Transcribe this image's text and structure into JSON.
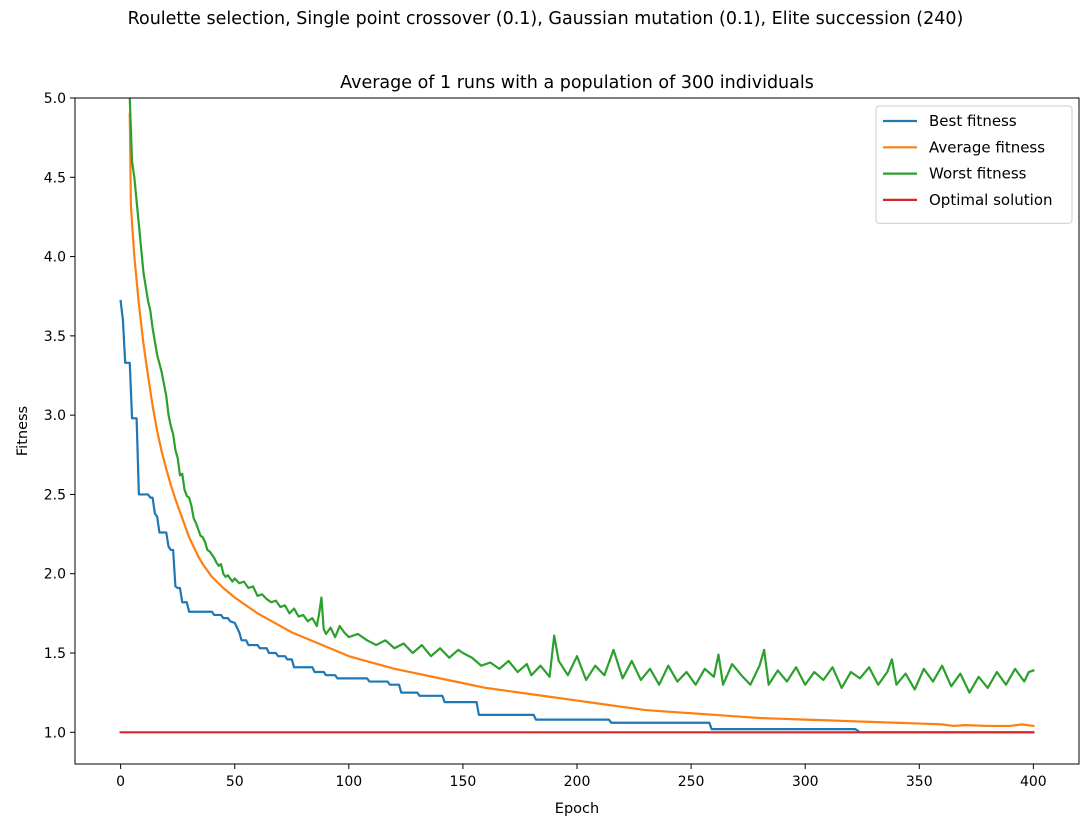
{
  "figure": {
    "suptitle": "Roulette selection, Single point crossover (0.1), Gaussian mutation (0.1), Elite succession (240)"
  },
  "chart_data": {
    "type": "line",
    "title": "Average of 1 runs with a population of 300 individuals",
    "xlabel": "Epoch",
    "ylabel": "Fitness",
    "xlim": [
      -20,
      420
    ],
    "ylim": [
      0.8,
      5.0
    ],
    "xticks": [
      0,
      50,
      100,
      150,
      200,
      250,
      300,
      350,
      400
    ],
    "xtick_labels": [
      "0",
      "50",
      "100",
      "150",
      "200",
      "250",
      "300",
      "350",
      "400"
    ],
    "yticks": [
      1.0,
      1.5,
      2.0,
      2.5,
      3.0,
      3.5,
      4.0,
      4.5,
      5.0
    ],
    "ytick_labels": [
      "1.0",
      "1.5",
      "2.0",
      "2.5",
      "3.0",
      "3.5",
      "4.0",
      "4.5",
      "5.0"
    ],
    "grid": false,
    "legend_position": "top-right",
    "series": [
      {
        "name": "Best fitness",
        "color": "#1f77b4",
        "points": [
          [
            0,
            3.72
          ],
          [
            1,
            3.6
          ],
          [
            2,
            3.33
          ],
          [
            4,
            3.33
          ],
          [
            5,
            2.98
          ],
          [
            7,
            2.98
          ],
          [
            8,
            2.5
          ],
          [
            12,
            2.5
          ],
          [
            13,
            2.48
          ],
          [
            14,
            2.48
          ],
          [
            15,
            2.38
          ],
          [
            16,
            2.36
          ],
          [
            17,
            2.26
          ],
          [
            20,
            2.26
          ],
          [
            21,
            2.17
          ],
          [
            22,
            2.15
          ],
          [
            23,
            2.15
          ],
          [
            24,
            1.92
          ],
          [
            25,
            1.91
          ],
          [
            26,
            1.91
          ],
          [
            27,
            1.82
          ],
          [
            29,
            1.82
          ],
          [
            30,
            1.76
          ],
          [
            40,
            1.76
          ],
          [
            41,
            1.74
          ],
          [
            44,
            1.74
          ],
          [
            45,
            1.72
          ],
          [
            47,
            1.72
          ],
          [
            48,
            1.7
          ],
          [
            50,
            1.69
          ],
          [
            51,
            1.66
          ],
          [
            52,
            1.63
          ],
          [
            53,
            1.58
          ],
          [
            55,
            1.58
          ],
          [
            56,
            1.55
          ],
          [
            60,
            1.55
          ],
          [
            61,
            1.53
          ],
          [
            64,
            1.53
          ],
          [
            65,
            1.5
          ],
          [
            68,
            1.5
          ],
          [
            69,
            1.48
          ],
          [
            72,
            1.48
          ],
          [
            73,
            1.46
          ],
          [
            75,
            1.46
          ],
          [
            76,
            1.41
          ],
          [
            84,
            1.41
          ],
          [
            85,
            1.38
          ],
          [
            89,
            1.38
          ],
          [
            90,
            1.36
          ],
          [
            94,
            1.36
          ],
          [
            95,
            1.34
          ],
          [
            108,
            1.34
          ],
          [
            109,
            1.32
          ],
          [
            117,
            1.32
          ],
          [
            118,
            1.3
          ],
          [
            122,
            1.3
          ],
          [
            123,
            1.25
          ],
          [
            130,
            1.25
          ],
          [
            131,
            1.23
          ],
          [
            141,
            1.23
          ],
          [
            142,
            1.19
          ],
          [
            156,
            1.19
          ],
          [
            157,
            1.11
          ],
          [
            181,
            1.11
          ],
          [
            182,
            1.08
          ],
          [
            214,
            1.08
          ],
          [
            215,
            1.06
          ],
          [
            258,
            1.06
          ],
          [
            259,
            1.02
          ],
          [
            322,
            1.02
          ],
          [
            324,
            1.0
          ],
          [
            400,
            1.0
          ]
        ]
      },
      {
        "name": "Average fitness",
        "color": "#ff7f0e",
        "points": [
          [
            4,
            4.9
          ],
          [
            4.5,
            4.32
          ],
          [
            6,
            4.0
          ],
          [
            8,
            3.7
          ],
          [
            10,
            3.45
          ],
          [
            12,
            3.25
          ],
          [
            14,
            3.06
          ],
          [
            16,
            2.9
          ],
          [
            18,
            2.77
          ],
          [
            20,
            2.66
          ],
          [
            22,
            2.56
          ],
          [
            24,
            2.47
          ],
          [
            26,
            2.39
          ],
          [
            28,
            2.31
          ],
          [
            30,
            2.23
          ],
          [
            32,
            2.17
          ],
          [
            34,
            2.11
          ],
          [
            36,
            2.06
          ],
          [
            38,
            2.02
          ],
          [
            40,
            1.98
          ],
          [
            45,
            1.91
          ],
          [
            50,
            1.85
          ],
          [
            55,
            1.8
          ],
          [
            60,
            1.75
          ],
          [
            65,
            1.71
          ],
          [
            70,
            1.67
          ],
          [
            75,
            1.63
          ],
          [
            80,
            1.6
          ],
          [
            85,
            1.57
          ],
          [
            90,
            1.54
          ],
          [
            95,
            1.51
          ],
          [
            100,
            1.48
          ],
          [
            110,
            1.44
          ],
          [
            120,
            1.4
          ],
          [
            130,
            1.37
          ],
          [
            140,
            1.34
          ],
          [
            150,
            1.31
          ],
          [
            160,
            1.28
          ],
          [
            170,
            1.26
          ],
          [
            180,
            1.24
          ],
          [
            190,
            1.22
          ],
          [
            200,
            1.2
          ],
          [
            210,
            1.18
          ],
          [
            220,
            1.16
          ],
          [
            230,
            1.14
          ],
          [
            240,
            1.13
          ],
          [
            250,
            1.12
          ],
          [
            260,
            1.11
          ],
          [
            270,
            1.1
          ],
          [
            280,
            1.09
          ],
          [
            290,
            1.085
          ],
          [
            300,
            1.08
          ],
          [
            310,
            1.075
          ],
          [
            320,
            1.07
          ],
          [
            330,
            1.065
          ],
          [
            340,
            1.06
          ],
          [
            350,
            1.055
          ],
          [
            360,
            1.05
          ],
          [
            365,
            1.04
          ],
          [
            370,
            1.045
          ],
          [
            380,
            1.04
          ],
          [
            390,
            1.04
          ],
          [
            395,
            1.05
          ],
          [
            400,
            1.04
          ]
        ]
      },
      {
        "name": "Worst fitness",
        "color": "#2ca02c",
        "points": [
          [
            4,
            5.0
          ],
          [
            5,
            4.6
          ],
          [
            6,
            4.5
          ],
          [
            8,
            4.2
          ],
          [
            10,
            3.9
          ],
          [
            12,
            3.72
          ],
          [
            13,
            3.66
          ],
          [
            14,
            3.55
          ],
          [
            16,
            3.38
          ],
          [
            18,
            3.27
          ],
          [
            20,
            3.12
          ],
          [
            21,
            3.0
          ],
          [
            22,
            2.93
          ],
          [
            23,
            2.88
          ],
          [
            24,
            2.78
          ],
          [
            25,
            2.73
          ],
          [
            26,
            2.62
          ],
          [
            27,
            2.63
          ],
          [
            28,
            2.53
          ],
          [
            29,
            2.49
          ],
          [
            30,
            2.48
          ],
          [
            31,
            2.43
          ],
          [
            32,
            2.35
          ],
          [
            33,
            2.32
          ],
          [
            34,
            2.28
          ],
          [
            35,
            2.24
          ],
          [
            36,
            2.23
          ],
          [
            37,
            2.2
          ],
          [
            38,
            2.15
          ],
          [
            39,
            2.14
          ],
          [
            40,
            2.12
          ],
          [
            41,
            2.1
          ],
          [
            42,
            2.07
          ],
          [
            43,
            2.05
          ],
          [
            44,
            2.06
          ],
          [
            45,
            2.0
          ],
          [
            46,
            1.98
          ],
          [
            47,
            1.99
          ],
          [
            48,
            1.97
          ],
          [
            49,
            1.95
          ],
          [
            50,
            1.97
          ],
          [
            52,
            1.94
          ],
          [
            54,
            1.95
          ],
          [
            56,
            1.91
          ],
          [
            58,
            1.92
          ],
          [
            60,
            1.86
          ],
          [
            62,
            1.87
          ],
          [
            64,
            1.84
          ],
          [
            66,
            1.82
          ],
          [
            68,
            1.83
          ],
          [
            70,
            1.79
          ],
          [
            72,
            1.8
          ],
          [
            74,
            1.75
          ],
          [
            76,
            1.78
          ],
          [
            78,
            1.73
          ],
          [
            80,
            1.74
          ],
          [
            82,
            1.7
          ],
          [
            84,
            1.72
          ],
          [
            86,
            1.67
          ],
          [
            87,
            1.75
          ],
          [
            88,
            1.85
          ],
          [
            89,
            1.65
          ],
          [
            90,
            1.62
          ],
          [
            92,
            1.66
          ],
          [
            94,
            1.6
          ],
          [
            96,
            1.67
          ],
          [
            98,
            1.63
          ],
          [
            100,
            1.6
          ],
          [
            104,
            1.62
          ],
          [
            108,
            1.58
          ],
          [
            112,
            1.55
          ],
          [
            116,
            1.58
          ],
          [
            120,
            1.53
          ],
          [
            124,
            1.56
          ],
          [
            128,
            1.5
          ],
          [
            132,
            1.55
          ],
          [
            136,
            1.48
          ],
          [
            140,
            1.53
          ],
          [
            144,
            1.47
          ],
          [
            148,
            1.52
          ],
          [
            150,
            1.5
          ],
          [
            154,
            1.47
          ],
          [
            158,
            1.42
          ],
          [
            162,
            1.44
          ],
          [
            166,
            1.4
          ],
          [
            170,
            1.45
          ],
          [
            174,
            1.38
          ],
          [
            178,
            1.43
          ],
          [
            180,
            1.36
          ],
          [
            184,
            1.42
          ],
          [
            188,
            1.35
          ],
          [
            190,
            1.61
          ],
          [
            192,
            1.45
          ],
          [
            196,
            1.36
          ],
          [
            200,
            1.48
          ],
          [
            204,
            1.33
          ],
          [
            208,
            1.42
          ],
          [
            212,
            1.36
          ],
          [
            216,
            1.52
          ],
          [
            220,
            1.34
          ],
          [
            224,
            1.45
          ],
          [
            228,
            1.33
          ],
          [
            232,
            1.4
          ],
          [
            236,
            1.3
          ],
          [
            240,
            1.42
          ],
          [
            244,
            1.32
          ],
          [
            248,
            1.38
          ],
          [
            252,
            1.3
          ],
          [
            256,
            1.4
          ],
          [
            260,
            1.35
          ],
          [
            262,
            1.49
          ],
          [
            264,
            1.3
          ],
          [
            268,
            1.43
          ],
          [
            272,
            1.36
          ],
          [
            276,
            1.3
          ],
          [
            280,
            1.42
          ],
          [
            282,
            1.52
          ],
          [
            284,
            1.3
          ],
          [
            288,
            1.39
          ],
          [
            292,
            1.32
          ],
          [
            296,
            1.41
          ],
          [
            300,
            1.3
          ],
          [
            304,
            1.38
          ],
          [
            308,
            1.33
          ],
          [
            312,
            1.41
          ],
          [
            316,
            1.28
          ],
          [
            320,
            1.38
          ],
          [
            324,
            1.34
          ],
          [
            328,
            1.41
          ],
          [
            332,
            1.3
          ],
          [
            336,
            1.38
          ],
          [
            338,
            1.46
          ],
          [
            340,
            1.3
          ],
          [
            344,
            1.37
          ],
          [
            348,
            1.27
          ],
          [
            352,
            1.4
          ],
          [
            356,
            1.32
          ],
          [
            360,
            1.42
          ],
          [
            364,
            1.29
          ],
          [
            368,
            1.37
          ],
          [
            372,
            1.25
          ],
          [
            376,
            1.35
          ],
          [
            380,
            1.28
          ],
          [
            384,
            1.38
          ],
          [
            388,
            1.3
          ],
          [
            392,
            1.4
          ],
          [
            396,
            1.32
          ],
          [
            398,
            1.38
          ],
          [
            400,
            1.39
          ]
        ]
      },
      {
        "name": "Optimal solution",
        "color": "#d62728",
        "points": [
          [
            0,
            1.0
          ],
          [
            400,
            1.0
          ]
        ]
      }
    ]
  }
}
